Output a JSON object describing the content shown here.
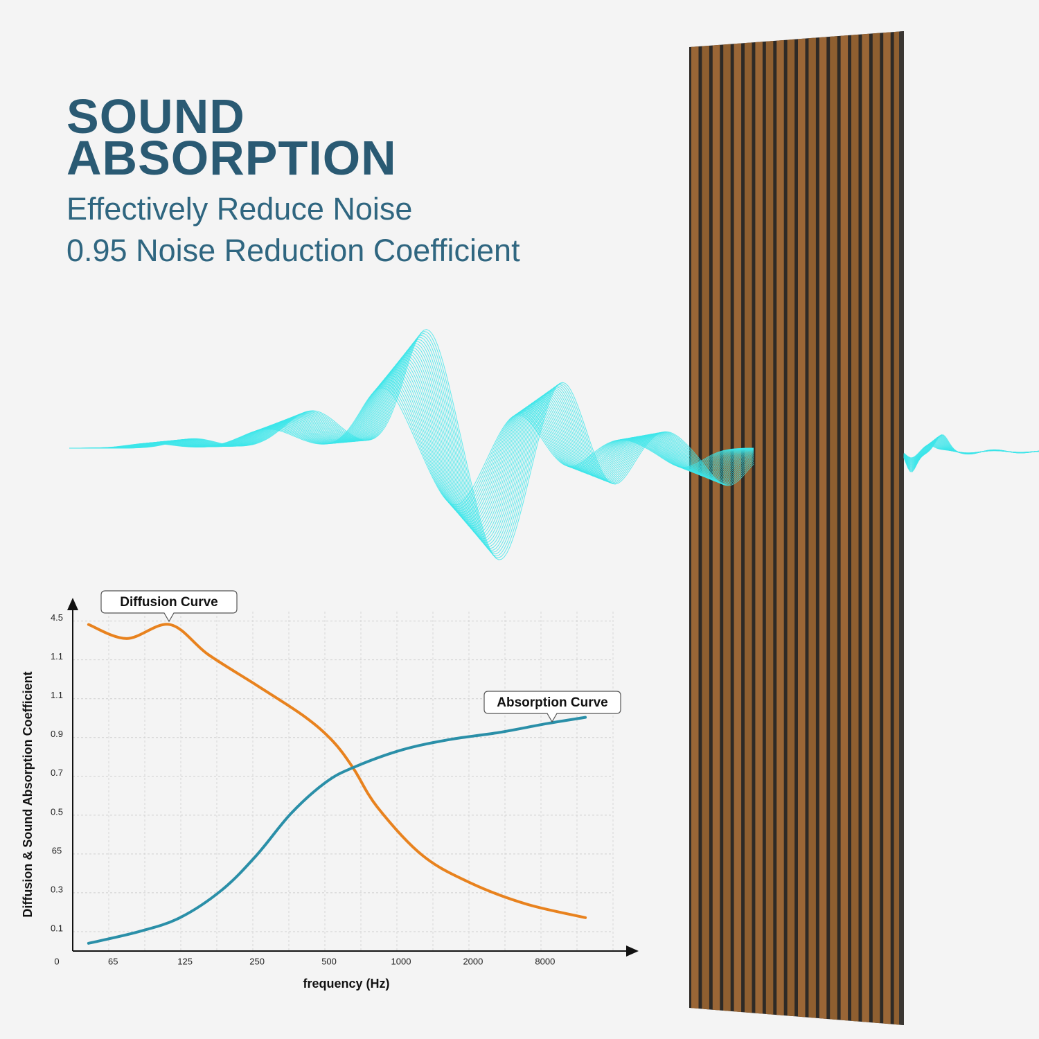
{
  "header": {
    "title_lines": [
      "SOUND",
      "ABSORPTION"
    ],
    "subtitle_lines": [
      "Effectively Reduce Noise",
      "0.95 Noise Reduction Coefficient"
    ]
  },
  "chart_data": {
    "type": "line",
    "x_label": "frequency (Hz)",
    "y_label": "Diffusion & Sound Absorption Coefficient",
    "xlim": [
      -0.56,
      7.3
    ],
    "xticks": [
      {
        "value": 0,
        "label": "65"
      },
      {
        "value": 1,
        "label": "125"
      },
      {
        "value": 2,
        "label": "250"
      },
      {
        "value": 3,
        "label": "500"
      },
      {
        "value": 4,
        "label": "1000"
      },
      {
        "value": 5,
        "label": "2000"
      },
      {
        "value": 6,
        "label": "8000"
      }
    ],
    "ylim": [
      0,
      9.1
    ],
    "yticks": [
      0,
      {
        "value": 0.5,
        "label": "0.1"
      },
      {
        "value": 1.5,
        "label": "0.3"
      },
      {
        "value": 2.5,
        "label": "65"
      },
      {
        "value": 3.5,
        "label": "0.5"
      },
      {
        "value": 4.5,
        "label": "0.7"
      },
      {
        "value": 5.5,
        "label": "0.9"
      },
      {
        "value": 6.5,
        "label": "1.1"
      },
      {
        "value": 7.5,
        "label": "1.1"
      },
      {
        "value": 8.5,
        "label": "4.5"
      }
    ],
    "grid": true,
    "series": [
      {
        "name": "Diffusion Curve",
        "color": "#e8821e",
        "x": [
          -0.34,
          0.19,
          0.79,
          1.32,
          2.0,
          2.66,
          3.05,
          3.34,
          3.67,
          4.3,
          4.97,
          5.74,
          6.56
        ],
        "values": [
          8.41,
          8.05,
          8.41,
          7.64,
          6.84,
          6.04,
          5.41,
          4.7,
          3.71,
          2.46,
          1.75,
          1.21,
          0.86
        ]
      },
      {
        "name": "Absorption Curve",
        "color": "#2a8fa8",
        "x": [
          -0.34,
          0.36,
          0.93,
          1.51,
          1.99,
          2.47,
          2.95,
          3.34,
          4.01,
          4.68,
          5.36,
          6.03,
          6.56
        ],
        "values": [
          0.2,
          0.5,
          0.86,
          1.57,
          2.46,
          3.54,
          4.34,
          4.73,
          5.18,
          5.45,
          5.63,
          5.86,
          6.02
        ]
      }
    ]
  }
}
